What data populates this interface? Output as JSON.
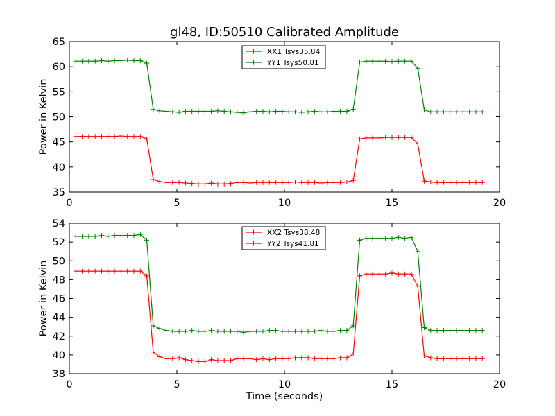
{
  "title": "gl48, ID:50510 Calibrated Amplitude",
  "colors": {
    "xx": "#ff0000",
    "yy": "#008000"
  },
  "chart_data": [
    {
      "type": "line",
      "xlabel": "",
      "ylabel": "Power in Kelvin",
      "xlim": [
        0,
        20
      ],
      "ylim": [
        35,
        65
      ],
      "xticks": [
        0,
        5,
        10,
        15,
        20
      ],
      "yticks": [
        35,
        40,
        45,
        50,
        55,
        60,
        65
      ],
      "legend": "top-center",
      "grid": false,
      "x": [
        0.3,
        0.6,
        0.9,
        1.2,
        1.5,
        1.8,
        2.1,
        2.4,
        2.7,
        3.0,
        3.3,
        3.6,
        3.9,
        4.2,
        4.5,
        4.8,
        5.1,
        5.4,
        5.7,
        6.0,
        6.3,
        6.6,
        6.9,
        7.2,
        7.5,
        7.8,
        8.1,
        8.4,
        8.7,
        9.0,
        9.3,
        9.6,
        9.9,
        10.2,
        10.5,
        10.8,
        11.1,
        11.4,
        11.7,
        12.0,
        12.3,
        12.6,
        12.9,
        13.2,
        13.5,
        13.8,
        14.1,
        14.4,
        14.7,
        15.0,
        15.3,
        15.6,
        15.9,
        16.2,
        16.5,
        16.8,
        17.1,
        17.4,
        17.7,
        18.0,
        18.3,
        18.6,
        18.9,
        19.2
      ],
      "series": [
        {
          "name": "XX1 Tsys35.84",
          "color": "#ff0000",
          "values": [
            46.1,
            46.1,
            46.1,
            46.1,
            46.1,
            46.1,
            46.1,
            46.2,
            46.1,
            46.1,
            46.1,
            45.6,
            37.5,
            37.1,
            36.9,
            36.9,
            36.9,
            36.8,
            36.7,
            36.6,
            36.6,
            36.8,
            36.6,
            36.6,
            36.7,
            36.9,
            36.9,
            36.8,
            36.9,
            36.9,
            36.9,
            36.9,
            36.9,
            36.9,
            37.0,
            36.9,
            36.9,
            36.9,
            36.8,
            36.9,
            36.9,
            36.9,
            37.0,
            37.3,
            45.6,
            45.8,
            45.8,
            45.8,
            45.9,
            45.9,
            45.9,
            45.9,
            45.9,
            44.6,
            37.2,
            37.0,
            36.9,
            36.9,
            36.9,
            36.9,
            36.9,
            36.9,
            36.9,
            36.9
          ]
        },
        {
          "name": "YY1 Tsys50.81",
          "color": "#008000",
          "values": [
            61.1,
            61.1,
            61.1,
            61.1,
            61.2,
            61.1,
            61.2,
            61.2,
            61.3,
            61.2,
            61.2,
            60.7,
            51.5,
            51.2,
            51.1,
            51.0,
            50.9,
            51.1,
            51.1,
            51.1,
            51.1,
            51.1,
            51.2,
            51.1,
            51.0,
            50.9,
            50.8,
            51.0,
            51.1,
            51.1,
            51.0,
            51.1,
            51.1,
            51.0,
            51.0,
            50.9,
            51.0,
            51.1,
            51.0,
            51.0,
            51.1,
            51.1,
            51.1,
            51.5,
            60.9,
            61.1,
            61.1,
            61.1,
            61.1,
            61.0,
            61.1,
            61.1,
            61.1,
            59.7,
            51.4,
            51.0,
            51.0,
            51.0,
            51.0,
            51.0,
            51.0,
            51.0,
            51.0,
            51.0
          ]
        }
      ]
    },
    {
      "type": "line",
      "xlabel": "Time (seconds)",
      "ylabel": "Power in Kelvin",
      "xlim": [
        0,
        20
      ],
      "ylim": [
        38,
        54
      ],
      "xticks": [
        0,
        5,
        10,
        15,
        20
      ],
      "yticks": [
        38,
        40,
        42,
        44,
        46,
        48,
        50,
        52,
        54
      ],
      "legend": "top-center",
      "grid": false,
      "x": [
        0.3,
        0.6,
        0.9,
        1.2,
        1.5,
        1.8,
        2.1,
        2.4,
        2.7,
        3.0,
        3.3,
        3.6,
        3.9,
        4.2,
        4.5,
        4.8,
        5.1,
        5.4,
        5.7,
        6.0,
        6.3,
        6.6,
        6.9,
        7.2,
        7.5,
        7.8,
        8.1,
        8.4,
        8.7,
        9.0,
        9.3,
        9.6,
        9.9,
        10.2,
        10.5,
        10.8,
        11.1,
        11.4,
        11.7,
        12.0,
        12.3,
        12.6,
        12.9,
        13.2,
        13.5,
        13.8,
        14.1,
        14.4,
        14.7,
        15.0,
        15.3,
        15.6,
        15.9,
        16.2,
        16.5,
        16.8,
        17.1,
        17.4,
        17.7,
        18.0,
        18.3,
        18.6,
        18.9,
        19.2
      ],
      "series": [
        {
          "name": "XX2 Tsys38.48",
          "color": "#ff0000",
          "values": [
            48.9,
            48.9,
            48.9,
            48.9,
            48.9,
            48.9,
            48.9,
            48.9,
            48.9,
            48.9,
            48.9,
            48.4,
            40.3,
            39.8,
            39.6,
            39.6,
            39.7,
            39.5,
            39.4,
            39.3,
            39.3,
            39.5,
            39.4,
            39.4,
            39.4,
            39.6,
            39.6,
            39.6,
            39.5,
            39.6,
            39.5,
            39.6,
            39.6,
            39.6,
            39.7,
            39.7,
            39.7,
            39.6,
            39.6,
            39.6,
            39.6,
            39.7,
            39.7,
            40.1,
            48.4,
            48.6,
            48.6,
            48.6,
            48.6,
            48.7,
            48.6,
            48.6,
            48.6,
            47.3,
            39.9,
            39.7,
            39.6,
            39.6,
            39.6,
            39.6,
            39.6,
            39.6,
            39.6,
            39.6
          ]
        },
        {
          "name": "YY2 Tsys41.81",
          "color": "#008000",
          "values": [
            52.6,
            52.6,
            52.6,
            52.6,
            52.7,
            52.6,
            52.7,
            52.7,
            52.7,
            52.7,
            52.8,
            52.2,
            43.1,
            42.8,
            42.6,
            42.5,
            42.5,
            42.5,
            42.6,
            42.5,
            42.5,
            42.6,
            42.5,
            42.5,
            42.5,
            42.5,
            42.4,
            42.5,
            42.5,
            42.5,
            42.6,
            42.6,
            42.5,
            42.5,
            42.5,
            42.5,
            42.5,
            42.5,
            42.6,
            42.5,
            42.5,
            42.6,
            42.6,
            43.1,
            52.2,
            52.4,
            52.4,
            52.4,
            52.4,
            52.4,
            52.5,
            52.4,
            52.5,
            51.0,
            42.9,
            42.6,
            42.6,
            42.6,
            42.6,
            42.6,
            42.6,
            42.6,
            42.6,
            42.6
          ]
        }
      ]
    }
  ]
}
